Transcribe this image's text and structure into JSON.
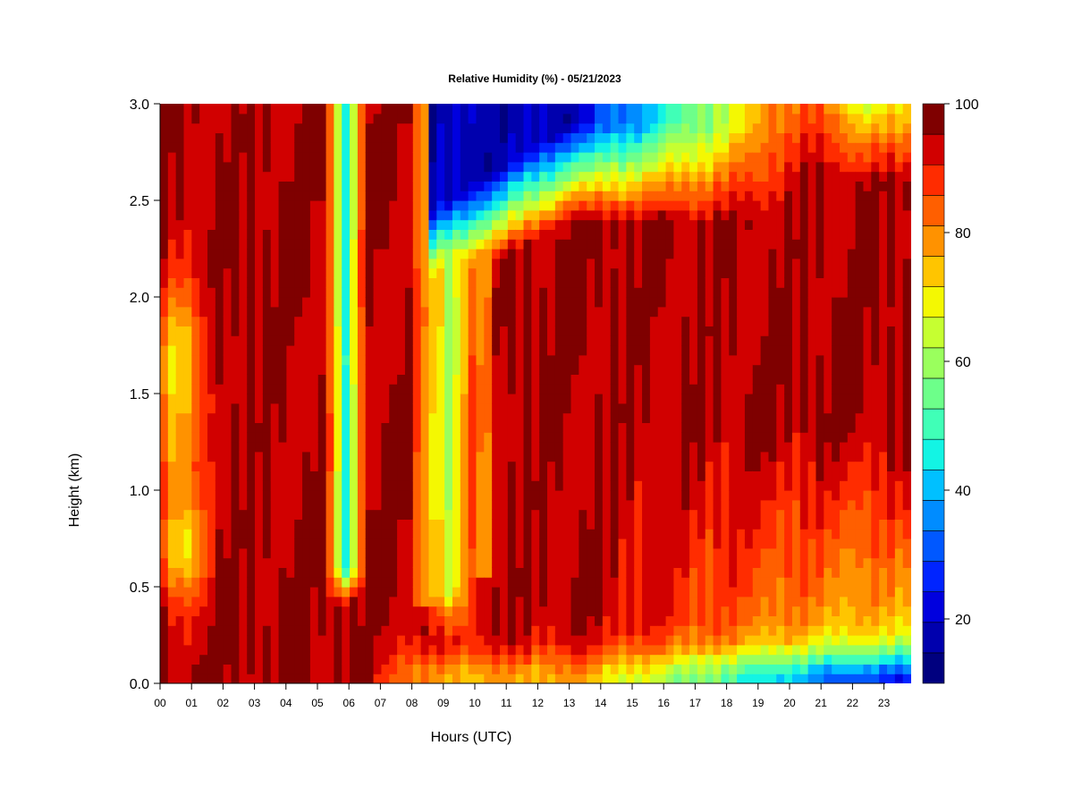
{
  "chart_data": {
    "type": "heatmap",
    "title": "Relative Humidity (%) - 05/21/2023",
    "xlabel": "Hours (UTC)",
    "ylabel": "Height (km)",
    "x_ticks": [
      "00",
      "01",
      "02",
      "03",
      "04",
      "05",
      "06",
      "07",
      "08",
      "09",
      "10",
      "11",
      "12",
      "13",
      "14",
      "15",
      "16",
      "17",
      "18",
      "19",
      "20",
      "21",
      "22",
      "23"
    ],
    "x_range_hours": [
      0,
      23.85
    ],
    "y_ticks": [
      "0.0",
      "0.5",
      "1.0",
      "1.5",
      "2.0",
      "2.5",
      "3.0"
    ],
    "ylim_km": [
      0,
      3
    ],
    "colorbar": {
      "range": [
        10,
        100
      ],
      "step": 5,
      "ticks": [
        "20",
        "40",
        "60",
        "80",
        "100"
      ],
      "colors": [
        "#00007f",
        "#0000ae",
        "#0000de",
        "#0024ff",
        "#0058ff",
        "#008cff",
        "#00c0ff",
        "#13f4e4",
        "#40ffb7",
        "#6dff8a",
        "#9aff5d",
        "#c6ff31",
        "#f4f802",
        "#ffc500",
        "#ff9200",
        "#ff5f00",
        "#ff2c00",
        "#d10000",
        "#7f0000"
      ]
    },
    "representative_profiles": [
      {
        "hour": 0.5,
        "rh_at_height_km": {
          "0.0": 100,
          "0.3": 100,
          "0.7": 82,
          "1.0": 88,
          "1.5": 74,
          "2.0": 92,
          "2.5": 100,
          "3.0": 100
        }
      },
      {
        "hour": 5.8,
        "rh_at_height_km": {
          "0.0": 100,
          "0.3": 100,
          "0.5": 65,
          "1.0": 55,
          "1.5": 50,
          "2.0": 58,
          "2.5": 70,
          "3.0": 82
        }
      },
      {
        "hour": 9.0,
        "rh_at_height_km": {
          "0.0": 86,
          "0.3": 92,
          "0.5": 68,
          "1.0": 66,
          "1.5": 68,
          "2.0": 72,
          "2.5": 40,
          "3.0": 18
        }
      },
      {
        "hour": 11.5,
        "rh_at_height_km": {
          "0.0": 78,
          "0.3": 100,
          "1.0": 100,
          "1.5": 100,
          "2.0": 100,
          "2.5": 35,
          "3.0": 17
        }
      },
      {
        "hour": 16.0,
        "rh_at_height_km": {
          "0.0": 62,
          "0.3": 92,
          "1.0": 100,
          "1.5": 100,
          "2.0": 100,
          "2.5": 76,
          "3.0": 52
        }
      },
      {
        "hour": 21.0,
        "rh_at_height_km": {
          "0.0": 52,
          "0.3": 78,
          "0.8": 88,
          "1.0": 96,
          "1.5": 100,
          "2.0": 100,
          "2.5": 100,
          "3.0": 70
        }
      },
      {
        "hour": 23.5,
        "rh_at_height_km": {
          "0.0": 56,
          "0.3": 80,
          "1.0": 92,
          "1.5": 100,
          "2.0": 100,
          "2.5": 90,
          "3.0": 60
        }
      }
    ]
  }
}
